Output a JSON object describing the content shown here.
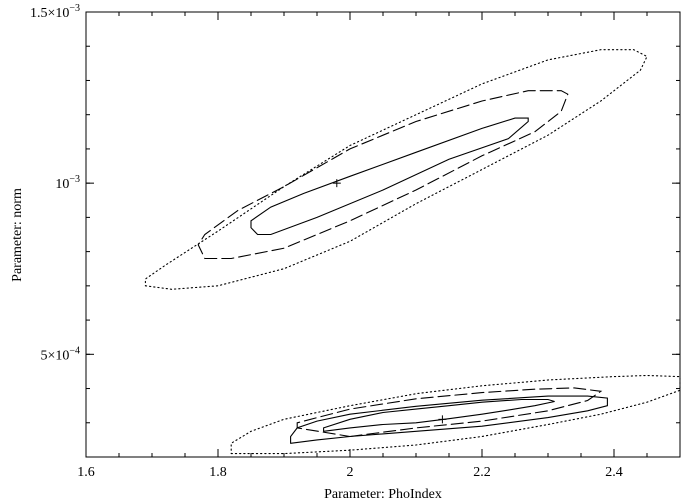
{
  "chart_data": {
    "type": "contour",
    "xlabel": "Parameter: PhoIndex",
    "ylabel": "Parameter: norm",
    "xlim": [
      1.6,
      2.5
    ],
    "ylim": [
      0.0002,
      0.0015
    ],
    "x_ticks": [
      {
        "value": 1.6,
        "label": "1.6"
      },
      {
        "value": 1.8,
        "label": "1.8"
      },
      {
        "value": 2.0,
        "label": "2"
      },
      {
        "value": 2.2,
        "label": "2.2"
      },
      {
        "value": 2.4,
        "label": "2.4"
      }
    ],
    "y_ticks": [
      {
        "value": 0.0005,
        "mantissa": "5×10",
        "exp": "−4"
      },
      {
        "value": 0.001,
        "mantissa": "10",
        "exp": "−3"
      },
      {
        "value": 0.0015,
        "mantissa": "1.5×10",
        "exp": "−3"
      }
    ],
    "contour_sets": [
      {
        "best_fit": [
          1.98,
          0.001
        ],
        "contours": [
          {
            "style": "solid",
            "points": [
              [
                1.86,
                0.00085
              ],
              [
                1.88,
                0.00085
              ],
              [
                1.95,
                0.0009
              ],
              [
                2.05,
                0.00098
              ],
              [
                2.15,
                0.00107
              ],
              [
                2.24,
                0.00113
              ],
              [
                2.27,
                0.00118
              ],
              [
                2.27,
                0.00119
              ],
              [
                2.25,
                0.00119
              ],
              [
                2.2,
                0.00116
              ],
              [
                2.1,
                0.00109
              ],
              [
                2.0,
                0.00102
              ],
              [
                1.93,
                0.00097
              ],
              [
                1.88,
                0.00093
              ],
              [
                1.85,
                0.00089
              ],
              [
                1.85,
                0.00087
              ],
              [
                1.86,
                0.00085
              ]
            ]
          },
          {
            "style": "dashed",
            "points": [
              [
                1.78,
                0.00078
              ],
              [
                1.82,
                0.00078
              ],
              [
                1.9,
                0.00081
              ],
              [
                2.0,
                0.00089
              ],
              [
                2.1,
                0.00098
              ],
              [
                2.2,
                0.00108
              ],
              [
                2.28,
                0.00115
              ],
              [
                2.32,
                0.00121
              ],
              [
                2.33,
                0.00126
              ],
              [
                2.32,
                0.00127
              ],
              [
                2.27,
                0.00127
              ],
              [
                2.2,
                0.00124
              ],
              [
                2.1,
                0.00118
              ],
              [
                2.0,
                0.0011
              ],
              [
                1.9,
                0.00099
              ],
              [
                1.83,
                0.00092
              ],
              [
                1.78,
                0.00085
              ],
              [
                1.77,
                0.00082
              ],
              [
                1.78,
                0.00078
              ]
            ]
          },
          {
            "style": "dotted",
            "points": [
              [
                1.69,
                0.0007
              ],
              [
                1.73,
                0.00069
              ],
              [
                1.8,
                0.0007
              ],
              [
                1.9,
                0.00075
              ],
              [
                2.0,
                0.00083
              ],
              [
                2.1,
                0.00094
              ],
              [
                2.2,
                0.00104
              ],
              [
                2.3,
                0.00114
              ],
              [
                2.38,
                0.00124
              ],
              [
                2.44,
                0.00133
              ],
              [
                2.45,
                0.00137
              ],
              [
                2.43,
                0.00139
              ],
              [
                2.38,
                0.00139
              ],
              [
                2.3,
                0.00136
              ],
              [
                2.2,
                0.00129
              ],
              [
                2.1,
                0.0012
              ],
              [
                2.0,
                0.00111
              ],
              [
                1.9,
                0.00099
              ],
              [
                1.8,
                0.00086
              ],
              [
                1.72,
                0.00076
              ],
              [
                1.69,
                0.00072
              ],
              [
                1.69,
                0.0007
              ]
            ]
          }
        ]
      },
      {
        "best_fit": [
          2.14,
          0.00031
        ],
        "contours": [
          {
            "style": "solid",
            "points": [
              [
                1.96,
                0.000275
              ],
              [
                2.0,
                0.000285
              ],
              [
                2.05,
                0.000295
              ],
              [
                2.1,
                0.0003
              ],
              [
                2.15,
                0.000312
              ],
              [
                2.2,
                0.000325
              ],
              [
                2.24,
                0.000337
              ],
              [
                2.28,
                0.00035
              ],
              [
                2.31,
                0.000362
              ],
              [
                2.3,
                0.000368
              ],
              [
                2.26,
                0.000368
              ],
              [
                2.2,
                0.00036
              ],
              [
                2.15,
                0.00035
              ],
              [
                2.1,
                0.00034
              ],
              [
                2.05,
                0.00033
              ],
              [
                2.0,
                0.00031
              ],
              [
                1.96,
                0.000285
              ],
              [
                1.96,
                0.000275
              ]
            ]
          },
          {
            "style": "solid",
            "points": [
              [
                1.91,
                0.00024
              ],
              [
                1.95,
                0.00025
              ],
              [
                2.0,
                0.00026
              ],
              [
                2.1,
                0.000275
              ],
              [
                2.2,
                0.00029
              ],
              [
                2.3,
                0.000315
              ],
              [
                2.36,
                0.000335
              ],
              [
                2.39,
                0.00035
              ],
              [
                2.39,
                0.000372
              ],
              [
                2.36,
                0.000378
              ],
              [
                2.3,
                0.000378
              ],
              [
                2.2,
                0.000366
              ],
              [
                2.1,
                0.000348
              ],
              [
                2.0,
                0.000325
              ],
              [
                1.95,
                0.000305
              ],
              [
                1.92,
                0.000285
              ],
              [
                1.91,
                0.00026
              ],
              [
                1.91,
                0.00024
              ]
            ]
          },
          {
            "style": "dashed",
            "points": [
              [
                2.0,
                0.00026
              ],
              [
                2.1,
                0.000285
              ],
              [
                2.2,
                0.000305
              ],
              [
                2.3,
                0.000335
              ],
              [
                2.36,
                0.000365
              ],
              [
                2.38,
                0.000392
              ],
              [
                2.34,
                0.000402
              ],
              [
                2.28,
                0.000398
              ],
              [
                2.2,
                0.000388
              ],
              [
                2.1,
                0.00037
              ],
              [
                2.0,
                0.00034
              ],
              [
                1.92,
                0.0003
              ],
              [
                1.92,
                0.000285
              ],
              [
                2.0,
                0.00026
              ]
            ]
          },
          {
            "style": "dotted",
            "points": [
              [
                1.82,
                0.00021
              ],
              [
                1.9,
                0.00021
              ],
              [
                2.0,
                0.00022
              ],
              [
                2.1,
                0.000235
              ],
              [
                2.2,
                0.00026
              ],
              [
                2.3,
                0.000295
              ],
              [
                2.38,
                0.000325
              ],
              [
                2.45,
                0.00036
              ],
              [
                2.5,
                0.000395
              ],
              [
                2.5,
                0.000435
              ],
              [
                2.45,
                0.000438
              ],
              [
                2.4,
                0.000435
              ],
              [
                2.3,
                0.000425
              ],
              [
                2.2,
                0.000408
              ],
              [
                2.1,
                0.000385
              ],
              [
                2.0,
                0.00035
              ],
              [
                1.9,
                0.00031
              ],
              [
                1.85,
                0.000275
              ],
              [
                1.82,
                0.00024
              ],
              [
                1.82,
                0.00021
              ]
            ]
          }
        ]
      }
    ]
  }
}
